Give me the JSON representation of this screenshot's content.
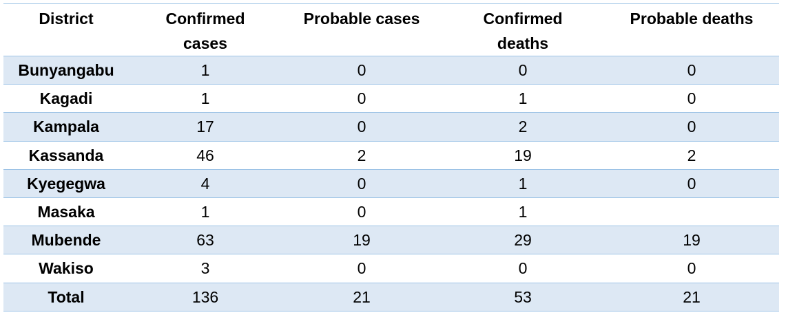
{
  "table": {
    "headers": [
      "District",
      "Confirmed cases",
      "Probable cases",
      "Confirmed deaths",
      "Probable deaths"
    ],
    "rows": [
      {
        "district": "Bunyangabu",
        "confirmed_cases": "1",
        "probable_cases": "0",
        "confirmed_deaths": "0",
        "probable_deaths": "0"
      },
      {
        "district": "Kagadi",
        "confirmed_cases": "1",
        "probable_cases": "0",
        "confirmed_deaths": "1",
        "probable_deaths": "0"
      },
      {
        "district": "Kampala",
        "confirmed_cases": "17",
        "probable_cases": "0",
        "confirmed_deaths": "2",
        "probable_deaths": "0"
      },
      {
        "district": "Kassanda",
        "confirmed_cases": "46",
        "probable_cases": "2",
        "confirmed_deaths": "19",
        "probable_deaths": "2"
      },
      {
        "district": "Kyegegwa",
        "confirmed_cases": "4",
        "probable_cases": "0",
        "confirmed_deaths": "1",
        "probable_deaths": "0"
      },
      {
        "district": "Masaka",
        "confirmed_cases": "1",
        "probable_cases": "0",
        "confirmed_deaths": "1",
        "probable_deaths": ""
      },
      {
        "district": "Mubende",
        "confirmed_cases": "63",
        "probable_cases": "19",
        "confirmed_deaths": "29",
        "probable_deaths": "19"
      },
      {
        "district": "Wakiso",
        "confirmed_cases": "3",
        "probable_cases": "0",
        "confirmed_deaths": "0",
        "probable_deaths": "0"
      },
      {
        "district": "Total",
        "confirmed_cases": "136",
        "probable_cases": "21",
        "confirmed_deaths": "53",
        "probable_deaths": "21"
      }
    ],
    "colors": {
      "shaded_row": "#dde8f4",
      "rule": "#9dc3e6"
    }
  }
}
